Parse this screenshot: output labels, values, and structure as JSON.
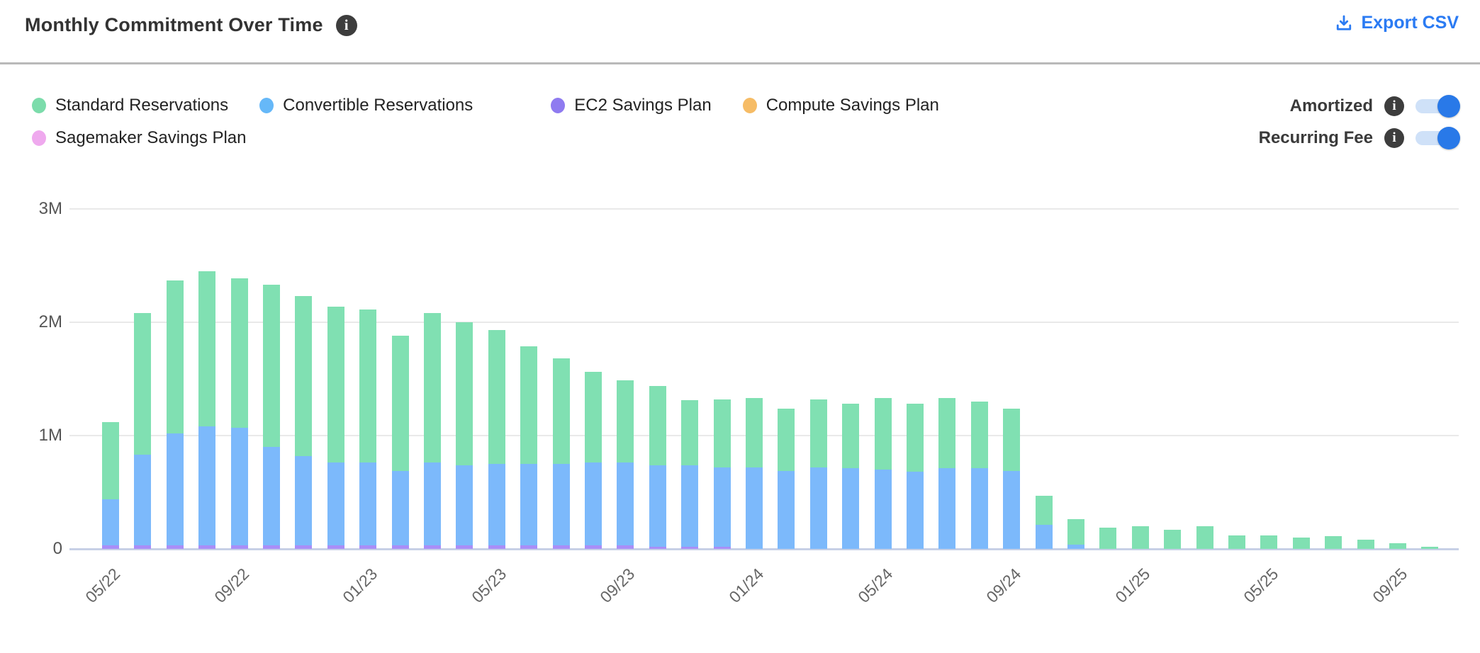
{
  "header": {
    "title": "Monthly Commitment Over Time",
    "title_info_icon": "info-icon",
    "export_label": "Export CSV",
    "export_color": "#2b7bf3"
  },
  "legend": {
    "rows": [
      [
        {
          "label": "Standard Reservations",
          "color": "#7cdcab"
        },
        {
          "label": "Convertible Reservations",
          "color": "#66b8f8"
        },
        {
          "label": "EC2 Savings Plan",
          "color": "#8f7bf0"
        },
        {
          "label": "Compute Savings Plan",
          "color": "#f6bc66"
        }
      ],
      [
        {
          "label": "Sagemaker Savings Plan",
          "color": "#efa9ee"
        }
      ]
    ]
  },
  "controls": {
    "toggles": [
      {
        "label": "Amortized",
        "state": "on"
      },
      {
        "label": "Recurring Fee",
        "state": "on"
      }
    ],
    "toggle_on_color": "#2979e8",
    "toggle_track_color": "#cfe1f8"
  },
  "chart_data": {
    "type": "bar",
    "stacked": true,
    "title": "Monthly Commitment Over Time",
    "xlabel": "",
    "ylabel": "",
    "ylim": [
      0,
      3
    ],
    "unit": "M (millions USD)",
    "grid": "horizontal",
    "legend_position": "top-left",
    "categories": [
      "05/22",
      "06/22",
      "07/22",
      "08/22",
      "09/22",
      "10/22",
      "11/22",
      "12/22",
      "01/23",
      "02/23",
      "03/23",
      "04/23",
      "05/23",
      "06/23",
      "07/23",
      "08/23",
      "09/23",
      "10/23",
      "11/23",
      "12/23",
      "01/24",
      "02/24",
      "03/24",
      "04/24",
      "05/24",
      "06/24",
      "07/24",
      "08/24",
      "09/24",
      "10/24",
      "11/24",
      "12/24",
      "01/25",
      "02/25",
      "03/25",
      "04/25",
      "05/25",
      "06/25",
      "07/25",
      "08/25",
      "09/25",
      "10/25"
    ],
    "x_ticks": [
      {
        "index": 0,
        "label": "05/22"
      },
      {
        "index": 4,
        "label": "09/22"
      },
      {
        "index": 8,
        "label": "01/23"
      },
      {
        "index": 12,
        "label": "05/23"
      },
      {
        "index": 16,
        "label": "09/23"
      },
      {
        "index": 20,
        "label": "01/24"
      },
      {
        "index": 24,
        "label": "05/24"
      },
      {
        "index": 28,
        "label": "09/24"
      },
      {
        "index": 32,
        "label": "01/25"
      },
      {
        "index": 36,
        "label": "05/25"
      },
      {
        "index": 40,
        "label": "09/25"
      }
    ],
    "y_ticks": [
      {
        "value": 0,
        "label": "0"
      },
      {
        "value": 1,
        "label": "1M"
      },
      {
        "value": 2,
        "label": "2M"
      },
      {
        "value": 3,
        "label": "3M"
      }
    ],
    "stack_order_bottom_to_top": [
      "EC2 Savings Plan",
      "Convertible Reservations",
      "Standard Reservations",
      "Compute Savings Plan",
      "Sagemaker Savings Plan"
    ],
    "series": [
      {
        "name": "Standard Reservations",
        "color": "#80e0b2",
        "values": [
          0.68,
          1.25,
          1.35,
          1.37,
          1.32,
          1.43,
          1.41,
          1.38,
          1.35,
          1.19,
          1.32,
          1.26,
          1.18,
          1.04,
          0.93,
          0.8,
          0.73,
          0.7,
          0.57,
          0.6,
          0.61,
          0.55,
          0.6,
          0.57,
          0.63,
          0.6,
          0.62,
          0.59,
          0.55,
          0.26,
          0.22,
          0.19,
          0.2,
          0.17,
          0.2,
          0.12,
          0.12,
          0.1,
          0.11,
          0.08,
          0.05,
          0.02
        ]
      },
      {
        "name": "Convertible Reservations",
        "color": "#7cb9fb",
        "values": [
          0.41,
          0.8,
          0.99,
          1.05,
          1.04,
          0.87,
          0.79,
          0.73,
          0.73,
          0.66,
          0.73,
          0.71,
          0.72,
          0.72,
          0.72,
          0.73,
          0.73,
          0.72,
          0.72,
          0.7,
          0.72,
          0.69,
          0.72,
          0.71,
          0.7,
          0.68,
          0.71,
          0.71,
          0.69,
          0.21,
          0.04,
          0,
          0,
          0,
          0,
          0,
          0,
          0,
          0,
          0,
          0,
          0
        ]
      },
      {
        "name": "EC2 Savings Plan",
        "color": "#a98ef7",
        "values": [
          0.03,
          0.03,
          0.03,
          0.03,
          0.03,
          0.03,
          0.03,
          0.03,
          0.03,
          0.03,
          0.03,
          0.03,
          0.03,
          0.03,
          0.03,
          0.03,
          0.03,
          0.02,
          0.02,
          0.02,
          0,
          0,
          0,
          0,
          0,
          0,
          0,
          0,
          0,
          0,
          0,
          0,
          0,
          0,
          0,
          0,
          0,
          0,
          0,
          0,
          0,
          0
        ]
      },
      {
        "name": "Compute Savings Plan",
        "color": "#f6bc66",
        "values": [
          0,
          0,
          0,
          0,
          0,
          0,
          0,
          0,
          0,
          0,
          0,
          0,
          0,
          0,
          0,
          0,
          0,
          0,
          0,
          0,
          0,
          0,
          0,
          0,
          0,
          0,
          0,
          0,
          0,
          0,
          0,
          0,
          0,
          0,
          0,
          0,
          0,
          0,
          0,
          0,
          0,
          0
        ]
      },
      {
        "name": "Sagemaker Savings Plan",
        "color": "#efa9ee",
        "values": [
          0,
          0,
          0,
          0,
          0,
          0,
          0,
          0,
          0,
          0,
          0,
          0,
          0,
          0,
          0,
          0,
          0,
          0,
          0,
          0,
          0,
          0,
          0,
          0,
          0,
          0,
          0,
          0,
          0,
          0,
          0,
          0,
          0,
          0,
          0,
          0,
          0,
          0,
          0,
          0,
          0,
          0
        ]
      }
    ]
  }
}
